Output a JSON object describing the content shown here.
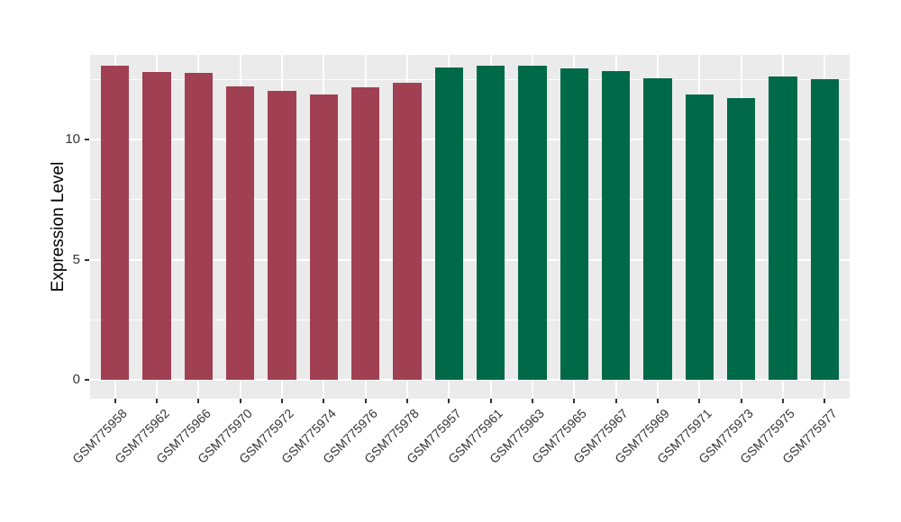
{
  "chart_data": {
    "type": "bar",
    "title": "",
    "xlabel": "",
    "ylabel": "Expression Level",
    "categories": [
      "GSM775958",
      "GSM775962",
      "GSM775966",
      "GSM775970",
      "GSM775972",
      "GSM775974",
      "GSM775976",
      "GSM775978",
      "GSM775957",
      "GSM775961",
      "GSM775963",
      "GSM775965",
      "GSM775967",
      "GSM775969",
      "GSM775971",
      "GSM775973",
      "GSM775975",
      "GSM775977"
    ],
    "values": [
      13.05,
      12.8,
      12.75,
      12.2,
      12.0,
      11.85,
      12.15,
      12.35,
      13.0,
      13.05,
      13.05,
      12.95,
      12.85,
      12.55,
      11.85,
      11.7,
      12.6,
      12.5
    ],
    "bar_group": [
      0,
      0,
      0,
      0,
      0,
      0,
      0,
      0,
      1,
      1,
      1,
      1,
      1,
      1,
      1,
      1,
      1,
      1
    ],
    "group_colors": [
      "#A04052",
      "#006948"
    ],
    "yticks": [
      0,
      5,
      10
    ],
    "ytick_labels": [
      "0",
      "5",
      "10"
    ],
    "yticks_minor": [
      2.5,
      7.5,
      12.5
    ],
    "ylim": [
      0,
      13.05
    ],
    "ylim_draw": [
      -0.77,
      13.51
    ],
    "x_expand": 0.6,
    "bar_width": 0.675,
    "grid": true,
    "legend": "none",
    "panel_bg": "#EBEBEB",
    "grid_color": "#FFFFFF"
  }
}
